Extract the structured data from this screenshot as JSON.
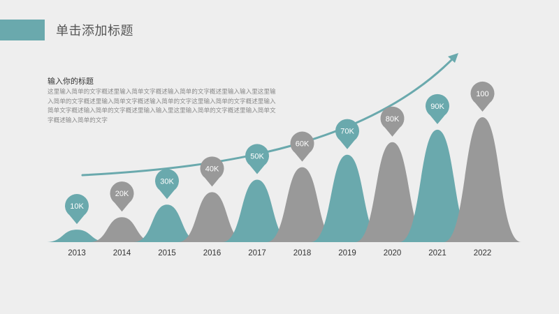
{
  "slide": {
    "title": "单击添加标题",
    "body_heading": "输入你的标题",
    "body_text": "这里输入简单的文字概述里输入简单文字概述输入简单的文字概述里输入输入里这里输入简单的文字概述里输入简单文字概述输入简单的文字这里输入简单的文字概述里输入简单文字概述输入简单的文字概述里输入输入里这里输入简单的文字概述里输入简单文字概述输入简单的文字"
  },
  "colors": {
    "teal": "#6aa9ad",
    "gray": "#999999",
    "background": "#eeeeee"
  },
  "chart_data": {
    "type": "area",
    "categories": [
      "2013",
      "2014",
      "2015",
      "2016",
      "2017",
      "2018",
      "2019",
      "2020",
      "2021",
      "2022"
    ],
    "values": [
      10,
      20,
      30,
      40,
      50,
      60,
      70,
      80,
      90,
      100
    ],
    "labels": [
      "10K",
      "20K",
      "30K",
      "40K",
      "50K",
      "60K",
      "70K",
      "80K",
      "90K",
      "100"
    ],
    "series_colors": [
      "teal",
      "gray",
      "teal",
      "gray",
      "teal",
      "gray",
      "teal",
      "gray",
      "teal",
      "gray"
    ],
    "trend_arrow": true,
    "grid": false,
    "ylim": [
      0,
      100
    ]
  }
}
